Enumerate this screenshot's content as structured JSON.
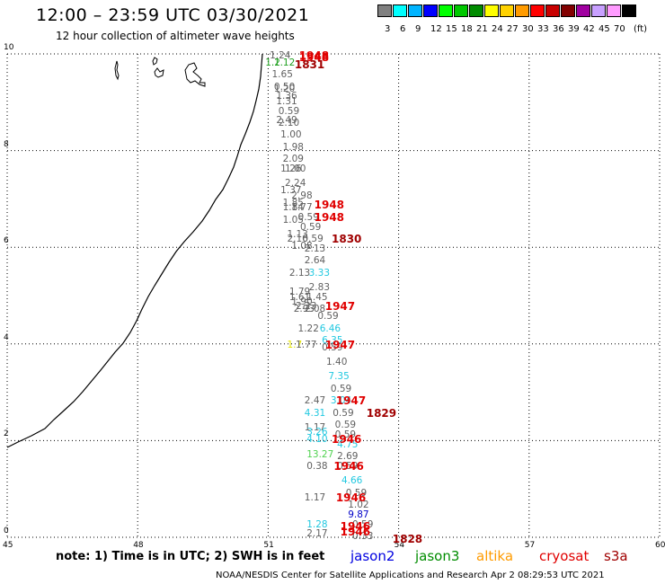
{
  "header": {
    "title": "12:00 – 23:59 UTC 03/30/2021",
    "subtitle": "12 hour collection of altimeter wave heights"
  },
  "legend": {
    "unit": "(ft)",
    "bins": [
      {
        "color": "#808080",
        "label": "3"
      },
      {
        "color": "#00ffff",
        "label": "6"
      },
      {
        "color": "#00b4ff",
        "label": "9"
      },
      {
        "color": "#0000ff",
        "label": "12"
      },
      {
        "color": "#00ff00",
        "label": "15"
      },
      {
        "color": "#00c800",
        "label": "18"
      },
      {
        "color": "#008c00",
        "label": "21"
      },
      {
        "color": "#ffff00",
        "label": "24"
      },
      {
        "color": "#ffd200",
        "label": "27"
      },
      {
        "color": "#ff9b00",
        "label": "30"
      },
      {
        "color": "#ff0000",
        "label": "33"
      },
      {
        "color": "#c80000",
        "label": "36"
      },
      {
        "color": "#820000",
        "label": "39"
      },
      {
        "color": "#a000a0",
        "label": "42"
      },
      {
        "color": "#c8a0ff",
        "label": "45"
      },
      {
        "color": "#ff9bff",
        "label": "70"
      },
      {
        "color": "#000000",
        "label": ""
      }
    ]
  },
  "map": {
    "lon_ticks": [
      "45",
      "48",
      "51",
      "54",
      "57",
      "60"
    ],
    "lat_ticks": [
      "0",
      "2",
      "4",
      "6",
      "8",
      "10"
    ]
  },
  "observations": [
    {
      "lon": 51.2,
      "lat": 9.95,
      "v": "1.24",
      "c": "#606060"
    },
    {
      "lon": 51.1,
      "lat": 9.8,
      "v": "1.2",
      "c": "#20a020"
    },
    {
      "lon": 51.3,
      "lat": 9.8,
      "v": "1.12",
      "c": "#20a020"
    },
    {
      "lon": 51.25,
      "lat": 9.55,
      "v": "1.65",
      "c": "#606060"
    },
    {
      "lon": 51.3,
      "lat": 9.3,
      "v": "0.50",
      "c": "#606060"
    },
    {
      "lon": 51.3,
      "lat": 9.25,
      "v": "1.20",
      "c": "#606060"
    },
    {
      "lon": 51.35,
      "lat": 9.1,
      "v": "1.36",
      "c": "#606060"
    },
    {
      "lon": 51.35,
      "lat": 9.0,
      "v": "1.31",
      "c": "#606060"
    },
    {
      "lon": 51.4,
      "lat": 8.8,
      "v": "0.59",
      "c": "#606060"
    },
    {
      "lon": 51.35,
      "lat": 8.6,
      "v": "2.49",
      "c": "#606060"
    },
    {
      "lon": 51.4,
      "lat": 8.55,
      "v": "2.10",
      "c": "#606060"
    },
    {
      "lon": 51.45,
      "lat": 8.3,
      "v": "1.00",
      "c": "#606060"
    },
    {
      "lon": 51.5,
      "lat": 8.05,
      "v": "1.98",
      "c": "#606060"
    },
    {
      "lon": 51.5,
      "lat": 7.8,
      "v": "2.09",
      "c": "#606060"
    },
    {
      "lon": 51.45,
      "lat": 7.6,
      "v": "1.26",
      "c": "#606060"
    },
    {
      "lon": 51.55,
      "lat": 7.6,
      "v": "1.00",
      "c": "#606060"
    },
    {
      "lon": 51.55,
      "lat": 7.3,
      "v": "2.24",
      "c": "#606060"
    },
    {
      "lon": 51.45,
      "lat": 7.15,
      "v": "1.37",
      "c": "#606060"
    },
    {
      "lon": 51.7,
      "lat": 7.05,
      "v": "2.98",
      "c": "#606060"
    },
    {
      "lon": 51.5,
      "lat": 6.9,
      "v": "1.85",
      "c": "#606060"
    },
    {
      "lon": 51.5,
      "lat": 6.8,
      "v": "1.84",
      "c": "#606060"
    },
    {
      "lon": 51.7,
      "lat": 6.8,
      "v": "1.77",
      "c": "#606060"
    },
    {
      "lon": 51.5,
      "lat": 6.55,
      "v": "1.05",
      "c": "#606060"
    },
    {
      "lon": 51.85,
      "lat": 6.6,
      "v": "0.59",
      "c": "#606060"
    },
    {
      "lon": 51.9,
      "lat": 6.4,
      "v": "0.59",
      "c": "#606060"
    },
    {
      "lon": 51.6,
      "lat": 6.25,
      "v": "1.13",
      "c": "#606060"
    },
    {
      "lon": 51.6,
      "lat": 6.15,
      "v": "2.16",
      "c": "#606060"
    },
    {
      "lon": 51.95,
      "lat": 6.15,
      "v": "0.59",
      "c": "#606060"
    },
    {
      "lon": 51.7,
      "lat": 6.0,
      "v": "1.08",
      "c": "#606060"
    },
    {
      "lon": 52.0,
      "lat": 5.95,
      "v": "2.13",
      "c": "#606060"
    },
    {
      "lon": 52.0,
      "lat": 5.7,
      "v": "2.64",
      "c": "#606060"
    },
    {
      "lon": 51.65,
      "lat": 5.45,
      "v": "2.13",
      "c": "#606060"
    },
    {
      "lon": 52.1,
      "lat": 5.45,
      "v": "3.33",
      "c": "#20c8e0"
    },
    {
      "lon": 52.1,
      "lat": 5.15,
      "v": "2.83",
      "c": "#606060"
    },
    {
      "lon": 51.65,
      "lat": 5.05,
      "v": "1.79",
      "c": "#606060"
    },
    {
      "lon": 51.65,
      "lat": 4.95,
      "v": "1.61",
      "c": "#606060"
    },
    {
      "lon": 52.05,
      "lat": 4.95,
      "v": "1.45",
      "c": "#606060"
    },
    {
      "lon": 51.7,
      "lat": 4.85,
      "v": "1.90",
      "c": "#606060"
    },
    {
      "lon": 51.8,
      "lat": 4.75,
      "v": "2.23",
      "c": "#606060"
    },
    {
      "lon": 51.75,
      "lat": 4.7,
      "v": "2.93",
      "c": "#606060"
    },
    {
      "lon": 52.0,
      "lat": 4.7,
      "v": "2.08",
      "c": "#606060"
    },
    {
      "lon": 52.3,
      "lat": 4.55,
      "v": "0.59",
      "c": "#606060"
    },
    {
      "lon": 51.85,
      "lat": 4.3,
      "v": "1.22",
      "c": "#606060"
    },
    {
      "lon": 52.35,
      "lat": 4.3,
      "v": "6.46",
      "c": "#20c8e0"
    },
    {
      "lon": 52.4,
      "lat": 4.05,
      "v": "6.35",
      "c": "#20c8e0"
    },
    {
      "lon": 51.6,
      "lat": 3.95,
      "v": "1.7",
      "c": "#e6e600"
    },
    {
      "lon": 51.8,
      "lat": 3.95,
      "v": "1.77",
      "c": "#606060"
    },
    {
      "lon": 52.4,
      "lat": 3.9,
      "v": "0.59",
      "c": "#606060"
    },
    {
      "lon": 52.5,
      "lat": 3.6,
      "v": "1.40",
      "c": "#606060"
    },
    {
      "lon": 52.55,
      "lat": 3.3,
      "v": "7.35",
      "c": "#20c8e0"
    },
    {
      "lon": 52.6,
      "lat": 3.05,
      "v": "0.59",
      "c": "#606060"
    },
    {
      "lon": 52.0,
      "lat": 2.8,
      "v": "2.47",
      "c": "#606060"
    },
    {
      "lon": 52.6,
      "lat": 2.8,
      "v": "3.04",
      "c": "#20c8e0"
    },
    {
      "lon": 52.0,
      "lat": 2.55,
      "v": "4.31",
      "c": "#20c8e0"
    },
    {
      "lon": 52.65,
      "lat": 2.55,
      "v": "0.59",
      "c": "#606060"
    },
    {
      "lon": 52.7,
      "lat": 2.3,
      "v": "0.59",
      "c": "#606060"
    },
    {
      "lon": 52.0,
      "lat": 2.25,
      "v": "1.17",
      "c": "#606060"
    },
    {
      "lon": 52.05,
      "lat": 2.15,
      "v": "3.26",
      "c": "#20c8e0"
    },
    {
      "lon": 52.7,
      "lat": 2.1,
      "v": "0.59",
      "c": "#606060"
    },
    {
      "lon": 52.05,
      "lat": 2.0,
      "v": "4.10",
      "c": "#20c8e0"
    },
    {
      "lon": 52.75,
      "lat": 1.9,
      "v": "4.75",
      "c": "#20c8e0"
    },
    {
      "lon": 52.05,
      "lat": 1.7,
      "v": "13.27",
      "c": "#50d250"
    },
    {
      "lon": 52.75,
      "lat": 1.65,
      "v": "2.69",
      "c": "#606060"
    },
    {
      "lon": 52.05,
      "lat": 1.45,
      "v": "0.38",
      "c": "#606060"
    },
    {
      "lon": 52.75,
      "lat": 1.45,
      "v": "0.59",
      "c": "#606060"
    },
    {
      "lon": 52.85,
      "lat": 1.15,
      "v": "4.66",
      "c": "#20c8e0"
    },
    {
      "lon": 52.95,
      "lat": 0.9,
      "v": "0.59",
      "c": "#606060"
    },
    {
      "lon": 52.0,
      "lat": 0.8,
      "v": "1.17",
      "c": "#606060"
    },
    {
      "lon": 53.0,
      "lat": 0.65,
      "v": "1.02",
      "c": "#606060"
    },
    {
      "lon": 53.0,
      "lat": 0.45,
      "v": "9.87",
      "c": "#0000c8"
    },
    {
      "lon": 52.05,
      "lat": 0.25,
      "v": "1.28",
      "c": "#20c8e0"
    },
    {
      "lon": 52.05,
      "lat": 0.05,
      "v": "2.17",
      "c": "#606060"
    },
    {
      "lon": 53.1,
      "lat": 0.25,
      "v": "0.59",
      "c": "#606060"
    },
    {
      "lon": 53.1,
      "lat": 0.0,
      "v": "0.33",
      "c": "#606060"
    }
  ],
  "times": [
    {
      "lon": 51.75,
      "lat": 9.95,
      "v": "1948",
      "c": "#e00000"
    },
    {
      "lon": 51.75,
      "lat": 9.9,
      "v": "1948",
      "c": "#e00000"
    },
    {
      "lon": 51.65,
      "lat": 9.75,
      "v": "1831",
      "c": "#a00000"
    },
    {
      "lon": 52.1,
      "lat": 6.85,
      "v": "1948",
      "c": "#e00000"
    },
    {
      "lon": 52.1,
      "lat": 6.6,
      "v": "1948",
      "c": "#e00000"
    },
    {
      "lon": 52.5,
      "lat": 6.15,
      "v": "1830",
      "c": "#a00000"
    },
    {
      "lon": 52.35,
      "lat": 4.75,
      "v": "1947",
      "c": "#e00000"
    },
    {
      "lon": 52.35,
      "lat": 3.95,
      "v": "1947",
      "c": "#e00000"
    },
    {
      "lon": 52.6,
      "lat": 2.8,
      "v": "1947",
      "c": "#e00000"
    },
    {
      "lon": 53.3,
      "lat": 2.55,
      "v": "1829",
      "c": "#a00000"
    },
    {
      "lon": 52.5,
      "lat": 2.0,
      "v": "1946",
      "c": "#e00000"
    },
    {
      "lon": 52.55,
      "lat": 1.45,
      "v": "1946",
      "c": "#e00000"
    },
    {
      "lon": 52.6,
      "lat": 0.8,
      "v": "1946",
      "c": "#e00000"
    },
    {
      "lon": 52.7,
      "lat": 0.2,
      "v": "1946",
      "c": "#e00000"
    },
    {
      "lon": 52.7,
      "lat": 0.1,
      "v": "1946",
      "c": "#e00000"
    },
    {
      "lon": 53.9,
      "lat": -0.05,
      "v": "1828",
      "c": "#a00000"
    }
  ],
  "footer": {
    "note": "note:  1) Time is in UTC;  2) SWH is in feet",
    "satellites": [
      {
        "name": "jason2",
        "color": "#0000e0"
      },
      {
        "name": "jason3",
        "color": "#008c00"
      },
      {
        "name": "altika",
        "color": "#ff9b00"
      },
      {
        "name": "cryosat",
        "color": "#e00000"
      },
      {
        "name": "s3a",
        "color": "#a00000"
      }
    ],
    "credit": "NOAA/NESDIS Center for Satellite Applications and Research     Apr  2 08:29:53 UTC 2021"
  }
}
